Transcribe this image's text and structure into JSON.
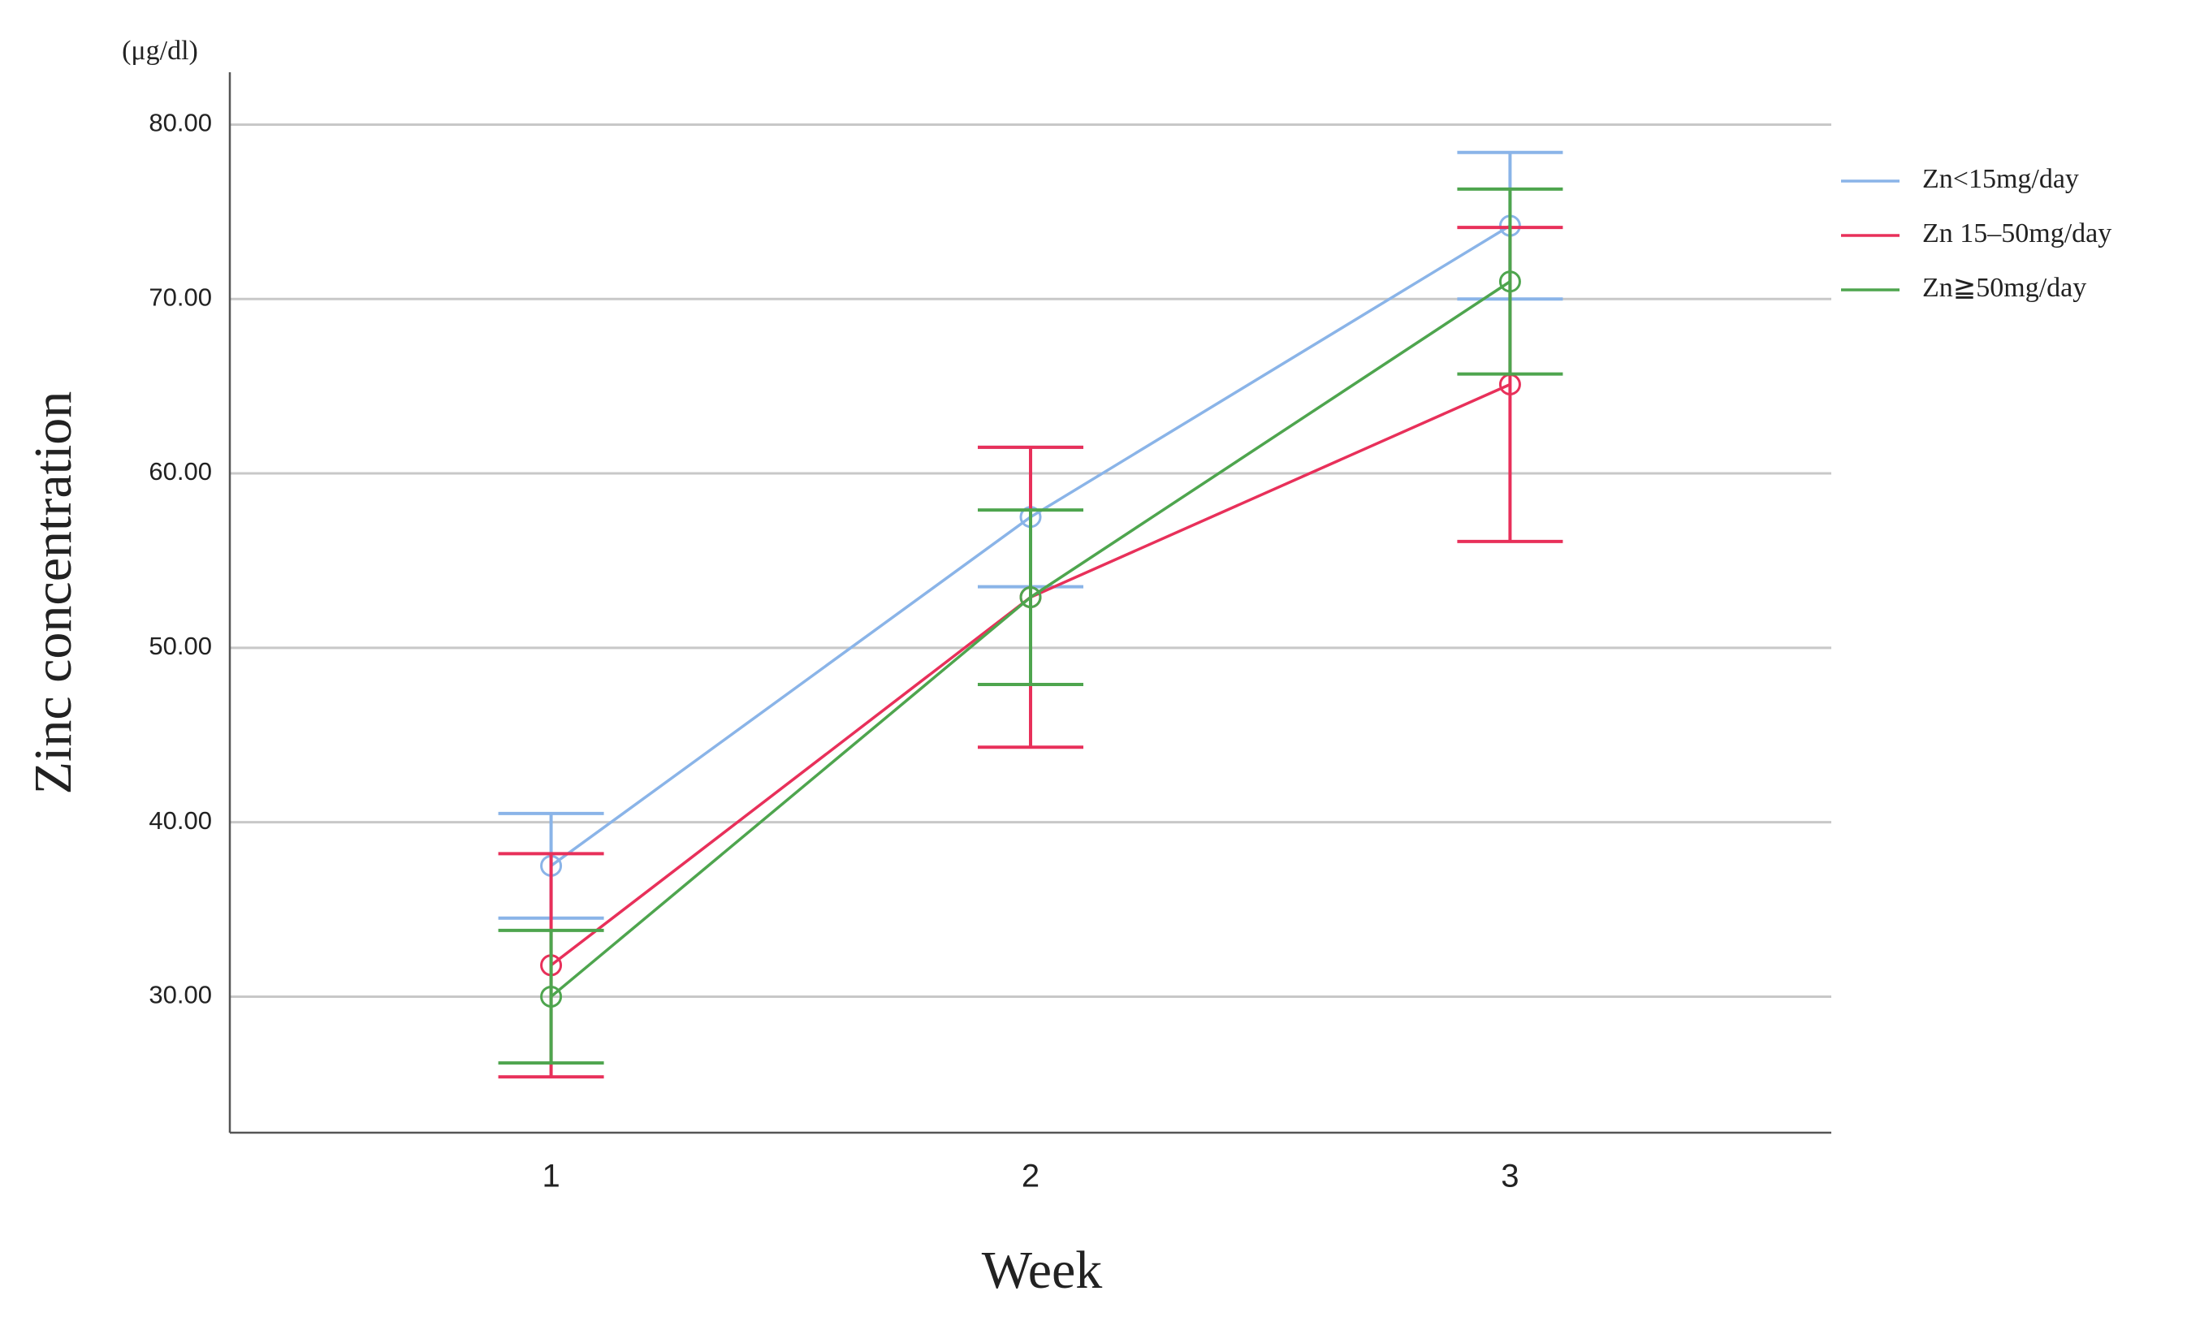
{
  "chart_data": {
    "type": "line",
    "unit_label": "(μg/dl)",
    "y_label": "Zinc concentration",
    "x_label": "Week",
    "x": [
      1,
      2,
      3
    ],
    "xlim": [
      0.33,
      3.67
    ],
    "xticks": [
      1,
      2,
      3
    ],
    "ylim": [
      22.2,
      83.0
    ],
    "yticks": [
      {
        "value": 30,
        "label": "30.00"
      },
      {
        "value": 40,
        "label": "40.00"
      },
      {
        "value": 50,
        "label": "50.00"
      },
      {
        "value": 60,
        "label": "60.00"
      },
      {
        "value": 70,
        "label": "70.00"
      },
      {
        "value": 80,
        "label": "80.00"
      }
    ],
    "grid": true,
    "legend": "right",
    "series": [
      {
        "name": "Zn<15mg/day",
        "color": "#8ab4e8",
        "values": [
          37.5,
          57.5,
          74.2
        ],
        "errors": [
          3.0,
          4.0,
          4.2
        ]
      },
      {
        "name": "Zn 15–50mg/day",
        "color": "#e8305a",
        "values": [
          31.8,
          52.9,
          65.1
        ],
        "errors": [
          6.4,
          8.6,
          9.0
        ]
      },
      {
        "name": "Zn≧50mg/day",
        "color": "#4ea54e",
        "values": [
          30.0,
          52.9,
          71.0
        ],
        "errors": [
          3.8,
          5.0,
          5.3
        ]
      }
    ]
  }
}
